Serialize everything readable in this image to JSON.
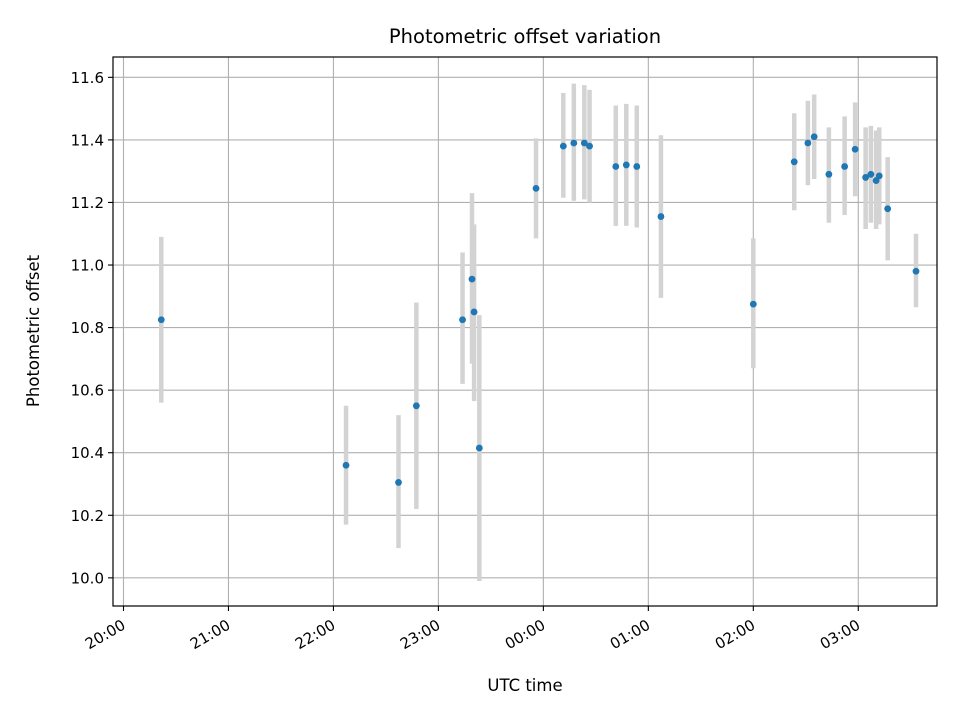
{
  "chart_data": {
    "type": "scatter",
    "title": "Photometric offset variation",
    "xlabel": "UTC time",
    "ylabel": "Photometric offset",
    "x_unit": "hours since 20:00 UTC",
    "xlim": [
      -0.1,
      7.75
    ],
    "ylim": [
      9.91,
      11.665
    ],
    "x_ticks": [
      0,
      1,
      2,
      3,
      4,
      5,
      6,
      7
    ],
    "x_tick_labels": [
      "20:00",
      "21:00",
      "22:00",
      "23:00",
      "00:00",
      "01:00",
      "02:00",
      "03:00"
    ],
    "y_ticks": [
      10.0,
      10.2,
      10.4,
      10.6,
      10.8,
      11.0,
      11.2,
      11.4,
      11.6
    ],
    "y_tick_labels": [
      "10.0",
      "10.2",
      "10.4",
      "10.6",
      "10.8",
      "11.0",
      "11.2",
      "11.4",
      "11.6"
    ],
    "grid": true,
    "point_color": "#1f77b4",
    "errorbar_color": "#d3d3d3",
    "points": [
      {
        "x": 0.36,
        "y": 10.825,
        "lo": 10.56,
        "hi": 11.09
      },
      {
        "x": 2.12,
        "y": 10.36,
        "lo": 10.17,
        "hi": 10.55
      },
      {
        "x": 2.62,
        "y": 10.305,
        "lo": 10.095,
        "hi": 10.52
      },
      {
        "x": 2.79,
        "y": 10.55,
        "lo": 10.22,
        "hi": 10.88
      },
      {
        "x": 3.23,
        "y": 10.825,
        "lo": 10.62,
        "hi": 11.04
      },
      {
        "x": 3.32,
        "y": 10.955,
        "lo": 10.685,
        "hi": 11.23
      },
      {
        "x": 3.34,
        "y": 10.85,
        "lo": 10.565,
        "hi": 11.13
      },
      {
        "x": 3.39,
        "y": 10.415,
        "lo": 9.99,
        "hi": 10.84
      },
      {
        "x": 3.93,
        "y": 11.245,
        "lo": 11.085,
        "hi": 11.405
      },
      {
        "x": 4.19,
        "y": 11.38,
        "lo": 11.215,
        "hi": 11.55
      },
      {
        "x": 4.29,
        "y": 11.39,
        "lo": 11.205,
        "hi": 11.58
      },
      {
        "x": 4.39,
        "y": 11.39,
        "lo": 11.21,
        "hi": 11.575
      },
      {
        "x": 4.44,
        "y": 11.38,
        "lo": 11.2,
        "hi": 11.56
      },
      {
        "x": 4.69,
        "y": 11.315,
        "lo": 11.125,
        "hi": 11.51
      },
      {
        "x": 4.79,
        "y": 11.32,
        "lo": 11.125,
        "hi": 11.515
      },
      {
        "x": 4.89,
        "y": 11.315,
        "lo": 11.12,
        "hi": 11.51
      },
      {
        "x": 5.12,
        "y": 11.155,
        "lo": 10.895,
        "hi": 11.415
      },
      {
        "x": 6.0,
        "y": 10.875,
        "lo": 10.67,
        "hi": 11.085
      },
      {
        "x": 6.39,
        "y": 11.33,
        "lo": 11.175,
        "hi": 11.485
      },
      {
        "x": 6.52,
        "y": 11.39,
        "lo": 11.255,
        "hi": 11.525
      },
      {
        "x": 6.58,
        "y": 11.41,
        "lo": 11.275,
        "hi": 11.545
      },
      {
        "x": 6.72,
        "y": 11.29,
        "lo": 11.135,
        "hi": 11.44
      },
      {
        "x": 6.87,
        "y": 11.315,
        "lo": 11.16,
        "hi": 11.475
      },
      {
        "x": 6.97,
        "y": 11.37,
        "lo": 11.22,
        "hi": 11.52
      },
      {
        "x": 7.07,
        "y": 11.28,
        "lo": 11.115,
        "hi": 11.44
      },
      {
        "x": 7.12,
        "y": 11.29,
        "lo": 11.135,
        "hi": 11.445
      },
      {
        "x": 7.17,
        "y": 11.27,
        "lo": 11.115,
        "hi": 11.43
      },
      {
        "x": 7.2,
        "y": 11.285,
        "lo": 11.13,
        "hi": 11.44
      },
      {
        "x": 7.28,
        "y": 11.18,
        "lo": 11.015,
        "hi": 11.345
      },
      {
        "x": 7.55,
        "y": 10.98,
        "lo": 10.865,
        "hi": 11.1
      }
    ]
  }
}
